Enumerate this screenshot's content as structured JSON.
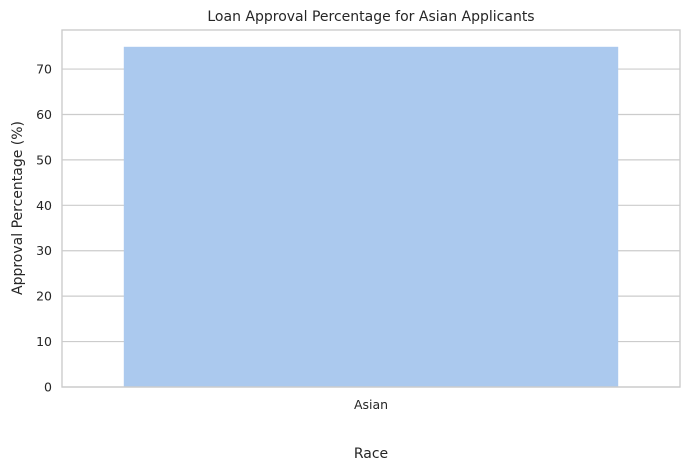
{
  "chart_data": {
    "type": "bar",
    "title": "Loan Approval Percentage for Asian Applicants",
    "xlabel": "Race",
    "ylabel": "Approval Percentage (%)",
    "categories": [
      "Asian"
    ],
    "values": [
      74.9
    ],
    "ylim": [
      0,
      78.6
    ],
    "yticks": [
      0,
      10,
      20,
      30,
      40,
      50,
      60,
      70
    ],
    "grid": "horizontal",
    "bar_color": "#abc9ee",
    "grid_color": "#cccccc"
  }
}
